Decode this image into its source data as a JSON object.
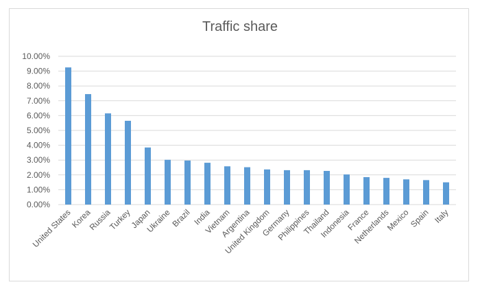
{
  "chart_data": {
    "type": "bar",
    "title": "Traffic share",
    "xlabel": "",
    "ylabel": "",
    "ylim": [
      0,
      10
    ],
    "grid": true,
    "categories": [
      "United States",
      "Korea",
      "Russia",
      "Turkey",
      "Japan",
      "Ukraine",
      "Brazil",
      "India",
      "Vietnam",
      "Argentina",
      "United Kingdom",
      "Germany",
      "Philippines",
      "Thailand",
      "Indonesia",
      "France",
      "Netherlands",
      "Mexico",
      "Spain",
      "Italy"
    ],
    "values": [
      9.25,
      7.45,
      6.15,
      5.65,
      3.85,
      3.02,
      2.97,
      2.82,
      2.58,
      2.52,
      2.37,
      2.32,
      2.32,
      2.27,
      2.03,
      1.85,
      1.8,
      1.7,
      1.65,
      1.5
    ],
    "yticks": [
      "0.00%",
      "1.00%",
      "2.00%",
      "3.00%",
      "4.00%",
      "5.00%",
      "6.00%",
      "7.00%",
      "8.00%",
      "9.00%",
      "10.00%"
    ],
    "colors": {
      "bar": "#5b9bd5",
      "grid": "#d9d9d9",
      "text": "#595959"
    }
  }
}
